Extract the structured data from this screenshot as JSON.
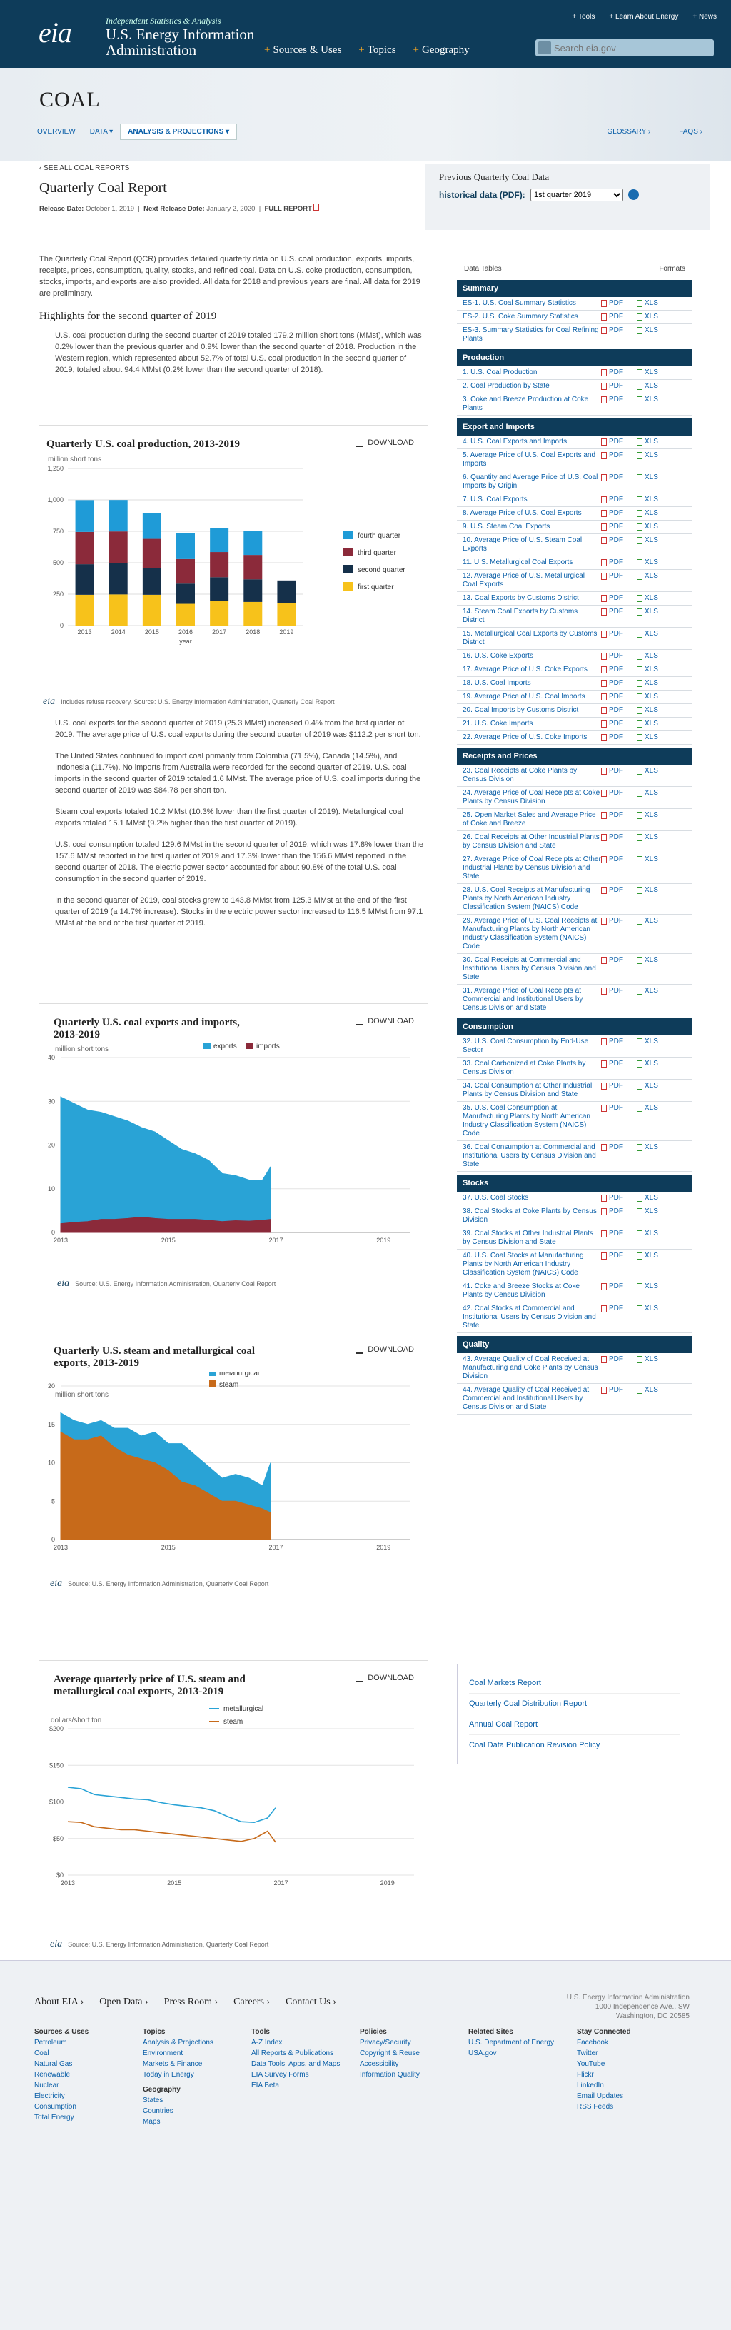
{
  "header": {
    "logo": "eia",
    "tagline": "Independent Statistics & Analysis",
    "agency1": "U.S. Energy Information",
    "agency2": "Administration",
    "toplinks": [
      "Tools",
      "Learn About Energy",
      "News"
    ],
    "nav": [
      "Sources & Uses",
      "Topics",
      "Geography"
    ],
    "search_placeholder": "Search eia.gov"
  },
  "band": {
    "title": "COAL",
    "tabs": [
      "OVERVIEW",
      "DATA",
      "ANALYSIS & PROJECTIONS"
    ],
    "right": [
      "GLOSSARY",
      "FAQS"
    ]
  },
  "report": {
    "crumb": "SEE ALL COAL REPORTS",
    "title": "Quarterly Coal Report",
    "release_label": "Release Date:",
    "release": "October 1, 2019",
    "next_label": "Next Release Date:",
    "next": "January 2, 2020",
    "full": "FULL REPORT"
  },
  "prev": {
    "title": "Previous Quarterly Coal Data",
    "label": "historical data (PDF):",
    "select": "1st quarter 2019"
  },
  "intro": "The Quarterly Coal Report (QCR) provides detailed quarterly data on U.S. coal production, exports, imports, receipts, prices, consumption, quality, stocks, and refined coal. Data on U.S. coke production, consumption, stocks, imports, and exports are also provided. All data for 2018 and previous years are final. All data for 2019 are preliminary.",
  "highlights_title": "Highlights for the second quarter of 2019",
  "highlights": "U.S. coal production during the second quarter of 2019 totaled 179.2 million short tons (MMst), which was 0.2% lower than the previous quarter and 0.9% lower than the second quarter of 2018. Production in the Western region, which represented about 52.7% of total U.S. coal production in the second quarter of 2019, totaled about 94.4 MMst (0.2% lower than the second quarter of 2018).",
  "download": "DOWNLOAD",
  "chart1": {
    "title": "Quarterly U.S. coal production, 2013-2019",
    "unit": "million short tons",
    "xlabel": "year",
    "source": "Includes refuse recovery. Source: U.S. Energy Information Administration, Quarterly Coal Report"
  },
  "bullets": [
    "U.S. coal exports for the second quarter of 2019 (25.3 MMst) increased 0.4% from the first quarter of 2019. The average price of U.S. coal exports during the second quarter of 2019 was $112.2 per short ton.",
    "The United States continued to import coal primarily from Colombia (71.5%), Canada (14.5%), and Indonesia (11.7%). No imports from Australia were recorded for the second quarter of 2019. U.S. coal imports in the second quarter of 2019 totaled 1.6 MMst. The average price of U.S. coal imports during the second quarter of 2019 was $84.78 per short ton.",
    "Steam coal exports totaled 10.2 MMst (10.3% lower than the first quarter of 2019). Metallurgical coal exports totaled 15.1 MMst (9.2% higher than the first quarter of 2019).",
    "U.S. coal consumption totaled 129.6 MMst in the second quarter of 2019, which was 17.8% lower than the 157.6 MMst reported in the first quarter of 2019 and 17.3% lower than the 156.6 MMst reported in the second quarter of 2018. The electric power sector accounted for about 90.8% of the total U.S. coal consumption in the second quarter of 2019.",
    "In the second quarter of 2019, coal stocks grew to 143.8 MMst from 125.3 MMst at the end of the first quarter of 2019 (a 14.7% increase). Stocks in the electric power sector increased to 116.5 MMst from 97.1 MMst at the end of the first quarter of 2019."
  ],
  "chart2": {
    "title1": "Quarterly U.S. coal exports and imports,",
    "title2": "2013-2019",
    "unit": "million short tons",
    "source": "Source: U.S. Energy Information Administration, Quarterly Coal Report"
  },
  "chart3": {
    "title1": "Quarterly U.S. steam and metallurgical coal",
    "title2": "exports, 2013-2019",
    "unit": "million short tons",
    "source": "Source: U.S. Energy Information Administration, Quarterly Coal Report"
  },
  "chart4": {
    "title1": "Average quarterly price of U.S. steam and",
    "title2": "metallurgical coal exports, 2013-2019",
    "unit": "dollars/short ton",
    "source": "Source: U.S. Energy Information Administration, Quarterly Coal Report"
  },
  "chart_data": [
    {
      "type": "bar",
      "title": "Quarterly U.S. coal production, 2013-2019",
      "ylabel": "million short tons",
      "xlabel": "year",
      "ylim": [
        0,
        1250
      ],
      "categories": [
        "2013",
        "2014",
        "2015",
        "2016",
        "2017",
        "2018",
        "2019"
      ],
      "series": [
        {
          "name": "first quarter",
          "values": [
            245,
            248,
            245,
            173,
            197,
            188,
            180
          ]
        },
        {
          "name": "second quarter",
          "values": [
            243,
            250,
            213,
            161,
            188,
            180,
            179
          ]
        },
        {
          "name": "third quarter",
          "values": [
            257,
            251,
            232,
            195,
            200,
            194,
            0
          ]
        },
        {
          "name": "fourth quarter",
          "values": [
            253,
            250,
            206,
            205,
            190,
            193,
            0
          ]
        }
      ],
      "legend": "right",
      "colors": [
        "#f7c21b",
        "#15304a",
        "#8b2a3a",
        "#1f9bd7"
      ]
    },
    {
      "type": "area",
      "title": "Quarterly U.S. coal exports and imports, 2013-2019",
      "ylabel": "million short tons",
      "xlim": [
        2013,
        2019.5
      ],
      "ylim": [
        0,
        40
      ],
      "x": [
        2013,
        2013.25,
        2013.5,
        2013.75,
        2014,
        2014.25,
        2014.5,
        2014.75,
        2015,
        2015.25,
        2015.5,
        2015.75,
        2016,
        2016.25,
        2016.5,
        2016.75,
        2016.9
      ],
      "series": [
        {
          "name": "exports",
          "values": [
            31,
            29.5,
            28,
            27.5,
            26.5,
            25.5,
            24,
            23,
            21,
            19,
            18,
            16.5,
            13.5,
            13,
            12,
            12,
            15
          ]
        },
        {
          "name": "imports",
          "values": [
            2,
            2.3,
            2.5,
            3,
            3,
            3.2,
            3.5,
            3.2,
            3,
            3,
            3,
            2.8,
            2.5,
            2.7,
            2.6,
            2.8,
            3
          ]
        }
      ],
      "ticks_x": [
        "2013",
        "2015",
        "2017",
        "2019"
      ],
      "ticks_y": [
        "0",
        "10",
        "20",
        "30",
        "40"
      ],
      "colors": [
        "#29a3d6",
        "#8b2a3a"
      ],
      "legend": "top"
    },
    {
      "type": "area",
      "title": "Quarterly U.S. steam and metallurgical coal exports, 2013-2019",
      "ylabel": "million short tons",
      "xlim": [
        2013,
        2019.5
      ],
      "ylim": [
        0,
        20
      ],
      "x": [
        2013,
        2013.25,
        2013.5,
        2013.75,
        2014,
        2014.25,
        2014.5,
        2014.75,
        2015,
        2015.25,
        2015.5,
        2015.75,
        2016,
        2016.25,
        2016.5,
        2016.75,
        2016.9
      ],
      "series": [
        {
          "name": "metallurgical",
          "values": [
            16.5,
            15.5,
            15,
            15.5,
            14.5,
            14.5,
            13.5,
            14,
            12.5,
            12.5,
            11,
            9.5,
            8,
            8.5,
            8,
            7,
            10
          ]
        },
        {
          "name": "steam",
          "values": [
            14,
            13,
            13,
            13.5,
            12,
            11,
            10.5,
            10,
            9,
            7.5,
            7,
            6,
            5,
            5,
            4.5,
            4,
            3.5
          ]
        }
      ],
      "ticks_x": [
        "2013",
        "2015",
        "2017",
        "2019"
      ],
      "ticks_y": [
        "0",
        "5",
        "10",
        "15",
        "20"
      ],
      "colors": [
        "#29a3d6",
        "#c76a1a"
      ],
      "legend": "top"
    },
    {
      "type": "line",
      "title": "Average quarterly price of U.S. steam and metallurgical coal exports, 2013-2019",
      "ylabel": "dollars/short ton",
      "xlim": [
        2013,
        2019.5
      ],
      "ylim": [
        0,
        200
      ],
      "x": [
        2013,
        2013.25,
        2013.5,
        2013.75,
        2014,
        2014.25,
        2014.5,
        2014.75,
        2015,
        2015.25,
        2015.5,
        2015.75,
        2016,
        2016.25,
        2016.5,
        2016.75,
        2016.9
      ],
      "series": [
        {
          "name": "metallurgical",
          "values": [
            120,
            118,
            110,
            108,
            106,
            104,
            103,
            99,
            96,
            94,
            92,
            88,
            80,
            73,
            72,
            78,
            92
          ]
        },
        {
          "name": "steam",
          "values": [
            73,
            72,
            66,
            64,
            62,
            62,
            60,
            58,
            56,
            54,
            52,
            50,
            48,
            46,
            50,
            60,
            45
          ]
        }
      ],
      "ticks_x": [
        "2013",
        "2015",
        "2017",
        "2019"
      ],
      "ticks_y": [
        "$0",
        "$50",
        "$100",
        "$150",
        "$200"
      ],
      "colors": [
        "#29a3d6",
        "#c76a1a"
      ],
      "legend": "top"
    }
  ],
  "sidebar": {
    "head_left": "Data Tables",
    "head_right": "Formats",
    "pdf": "PDF",
    "xls": "XLS",
    "sections": [
      {
        "title": "Summary",
        "items": [
          "ES-1. U.S. Coal Summary Statistics",
          "ES-2. U.S. Coke Summary Statistics",
          "ES-3. Summary Statistics for Coal Refining Plants"
        ]
      },
      {
        "title": "Production",
        "items": [
          "1. U.S. Coal Production",
          "2. Coal Production by State",
          "3. Coke and Breeze Production at Coke Plants"
        ]
      },
      {
        "title": "Export and Imports",
        "items": [
          "4. U.S. Coal Exports and Imports",
          "5. Average Price of U.S. Coal Exports and Imports",
          "6. Quantity and Average Price of U.S. Coal Imports by Origin",
          "7. U.S. Coal Exports",
          "8. Average Price of U.S. Coal Exports",
          "9. U.S. Steam Coal Exports",
          "10. Average Price of U.S. Steam Coal Exports",
          "11. U.S. Metallurgical Coal Exports",
          "12. Average Price of U.S. Metallurgical Coal Exports",
          "13. Coal Exports by Customs District",
          "14. Steam Coal Exports by Customs District",
          "15. Metallurgical Coal Exports by Customs District",
          "16. U.S. Coke Exports",
          "17. Average Price of U.S. Coke Exports",
          "18. U.S. Coal Imports",
          "19. Average Price of U.S. Coal Imports",
          "20. Coal Imports by Customs District",
          "21. U.S. Coke Imports",
          "22. Average Price of U.S. Coke Imports"
        ]
      },
      {
        "title": "Receipts and Prices",
        "items": [
          "23. Coal Receipts at Coke Plants by Census Division",
          "24. Average Price of Coal Receipts at Coke Plants by Census Division",
          "25. Open Market Sales and Average Price of Coke and Breeze",
          "26. Coal Receipts at Other Industrial Plants by Census Division and State",
          "27. Average Price of Coal Receipts at Other Industrial Plants by Census Division and State",
          "28. U.S. Coal Receipts at Manufacturing Plants by North American Industry Classification System (NAICS) Code",
          "29. Average Price of U.S. Coal Receipts at Manufacturing Plants by North American Industry Classification System (NAICS) Code",
          "30. Coal Receipts at Commercial and Institutional Users by Census Division and State",
          "31. Average Price of Coal Receipts at Commercial and Institutional Users by Census Division and State"
        ]
      },
      {
        "title": "Consumption",
        "items": [
          "32. U.S. Coal Consumption by End-Use Sector",
          "33. Coal Carbonized at Coke Plants by Census Division",
          "34. Coal Consumption at Other Industrial Plants by Census Division and State",
          "35. U.S. Coal Consumption at Manufacturing Plants by North American Industry Classification System (NAICS) Code",
          "36. Coal Consumption at Commercial and Institutional Users by Census Division and State"
        ]
      },
      {
        "title": "Stocks",
        "items": [
          "37. U.S. Coal Stocks",
          "38. Coal Stocks at Coke Plants by Census Division",
          "39. Coal Stocks at Other Industrial Plants by Census Division and State",
          "40. U.S. Coal Stocks at Manufacturing Plants by North American Industry Classification System (NAICS) Code",
          "41. Coke and Breeze Stocks at Coke Plants by Census Division",
          "42. Coal Stocks at Commercial and Institutional Users by Census Division and State"
        ]
      },
      {
        "title": "Quality",
        "items": [
          "43. Average Quality of Coal Received at Manufacturing and Coke Plants by Census Division",
          "44. Average Quality of Coal Received at Commercial and Institutional Users by Census Division and State"
        ]
      }
    ]
  },
  "related": [
    "Coal Markets Report",
    "Quarterly Coal Distribution Report",
    "Annual Coal Report",
    "Coal Data Publication Revision Policy"
  ],
  "footer": {
    "top": [
      "About EIA",
      "Open Data",
      "Press Room",
      "Careers",
      "Contact Us"
    ],
    "addr": [
      "U.S. Energy Information Administration",
      "1000 Independence Ave., SW",
      "Washington, DC 20585"
    ],
    "cols": [
      {
        "h": "Sources & Uses",
        "items": [
          "Petroleum",
          "Coal",
          "Natural Gas",
          "Renewable",
          "Nuclear",
          "Electricity",
          "Consumption",
          "Total Energy"
        ]
      },
      {
        "h": "Topics",
        "items": [
          "Analysis & Projections",
          "Environment",
          "Markets & Finance",
          "Today in Energy"
        ],
        "h2": "Geography",
        "items2": [
          "States",
          "Countries",
          "Maps"
        ]
      },
      {
        "h": "Tools",
        "items": [
          "A-Z Index",
          "All Reports & Publications",
          "Data Tools, Apps, and Maps",
          "EIA Survey Forms",
          "EIA Beta"
        ]
      },
      {
        "h": "Policies",
        "items": [
          "Privacy/Security",
          "Copyright & Reuse",
          "Accessibility",
          "Information Quality"
        ]
      },
      {
        "h": "Related Sites",
        "items": [
          "U.S. Department of Energy",
          "USA.gov"
        ]
      },
      {
        "h": "Stay Connected",
        "items": [
          "Facebook",
          "Twitter",
          "YouTube",
          "Flickr",
          "LinkedIn",
          "Email Updates",
          "RSS Feeds"
        ]
      }
    ]
  }
}
